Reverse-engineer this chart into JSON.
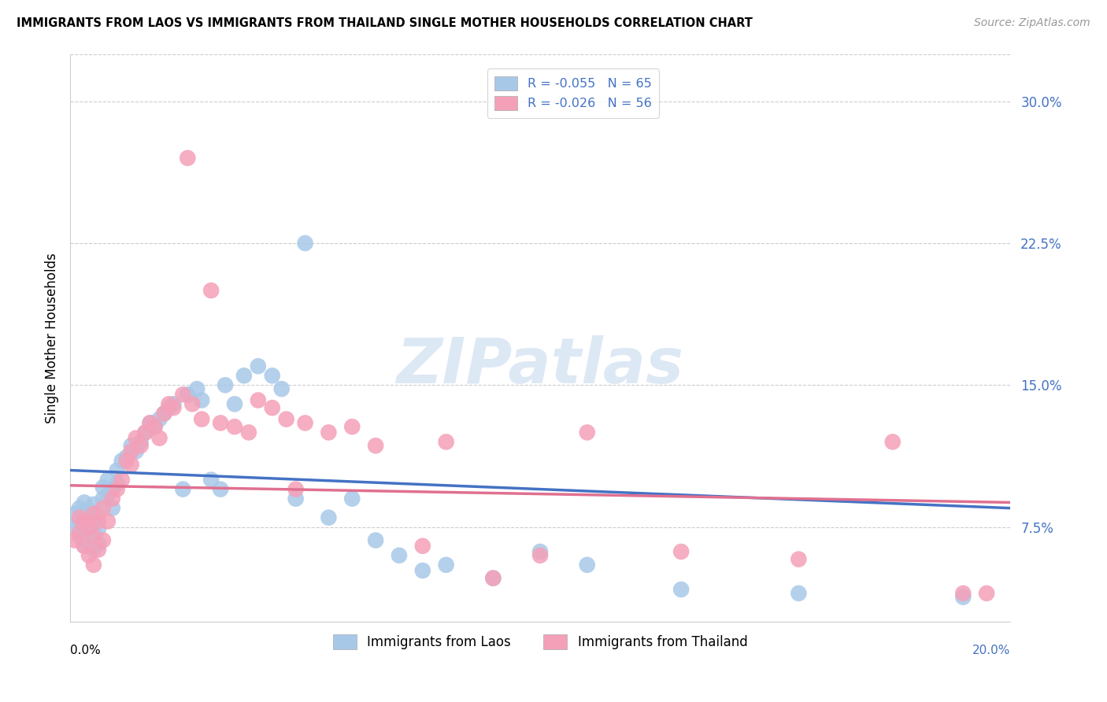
{
  "title": "IMMIGRANTS FROM LAOS VS IMMIGRANTS FROM THAILAND SINGLE MOTHER HOUSEHOLDS CORRELATION CHART",
  "source": "Source: ZipAtlas.com",
  "ylabel": "Single Mother Households",
  "yticks": [
    0.075,
    0.15,
    0.225,
    0.3
  ],
  "ytick_labels": [
    "7.5%",
    "15.0%",
    "22.5%",
    "30.0%"
  ],
  "xmin": 0.0,
  "xmax": 0.2,
  "ymin": 0.025,
  "ymax": 0.325,
  "legend_blue_label": "R = -0.055   N = 65",
  "legend_pink_label": "R = -0.026   N = 56",
  "legend_bottom_blue": "Immigrants from Laos",
  "legend_bottom_pink": "Immigrants from Thailand",
  "blue_color": "#a8c8e8",
  "pink_color": "#f4a0b8",
  "line_blue": "#4472c4",
  "line_pink": "#e07090",
  "watermark": "ZIPatlas",
  "laos_x": [
    0.001,
    0.001,
    0.002,
    0.002,
    0.002,
    0.003,
    0.003,
    0.003,
    0.003,
    0.004,
    0.004,
    0.004,
    0.005,
    0.005,
    0.005,
    0.005,
    0.006,
    0.006,
    0.006,
    0.007,
    0.007,
    0.008,
    0.008,
    0.009,
    0.009,
    0.01,
    0.01,
    0.011,
    0.012,
    0.013,
    0.014,
    0.015,
    0.016,
    0.017,
    0.018,
    0.019,
    0.02,
    0.021,
    0.022,
    0.024,
    0.025,
    0.027,
    0.028,
    0.03,
    0.032,
    0.033,
    0.035,
    0.037,
    0.04,
    0.043,
    0.045,
    0.048,
    0.05,
    0.055,
    0.06,
    0.065,
    0.07,
    0.075,
    0.08,
    0.09,
    0.1,
    0.11,
    0.13,
    0.155,
    0.19
  ],
  "laos_y": [
    0.075,
    0.082,
    0.07,
    0.078,
    0.085,
    0.065,
    0.072,
    0.08,
    0.088,
    0.068,
    0.076,
    0.084,
    0.063,
    0.071,
    0.079,
    0.087,
    0.066,
    0.074,
    0.082,
    0.09,
    0.096,
    0.092,
    0.1,
    0.085,
    0.095,
    0.098,
    0.105,
    0.11,
    0.112,
    0.118,
    0.115,
    0.12,
    0.125,
    0.13,
    0.128,
    0.132,
    0.135,
    0.138,
    0.14,
    0.095,
    0.145,
    0.148,
    0.142,
    0.1,
    0.095,
    0.15,
    0.14,
    0.155,
    0.16,
    0.155,
    0.148,
    0.09,
    0.225,
    0.08,
    0.09,
    0.068,
    0.06,
    0.052,
    0.055,
    0.048,
    0.062,
    0.055,
    0.042,
    0.04,
    0.038
  ],
  "thailand_x": [
    0.001,
    0.002,
    0.002,
    0.003,
    0.003,
    0.004,
    0.004,
    0.005,
    0.005,
    0.005,
    0.006,
    0.006,
    0.007,
    0.007,
    0.008,
    0.009,
    0.01,
    0.011,
    0.012,
    0.013,
    0.013,
    0.014,
    0.015,
    0.016,
    0.017,
    0.018,
    0.019,
    0.02,
    0.021,
    0.022,
    0.024,
    0.025,
    0.026,
    0.028,
    0.03,
    0.032,
    0.035,
    0.038,
    0.04,
    0.043,
    0.046,
    0.048,
    0.05,
    0.055,
    0.06,
    0.065,
    0.075,
    0.08,
    0.09,
    0.1,
    0.11,
    0.13,
    0.155,
    0.175,
    0.19,
    0.195
  ],
  "thailand_y": [
    0.068,
    0.072,
    0.08,
    0.065,
    0.078,
    0.06,
    0.075,
    0.055,
    0.07,
    0.082,
    0.063,
    0.078,
    0.068,
    0.085,
    0.078,
    0.09,
    0.095,
    0.1,
    0.11,
    0.115,
    0.108,
    0.122,
    0.118,
    0.125,
    0.13,
    0.128,
    0.122,
    0.135,
    0.14,
    0.138,
    0.145,
    0.27,
    0.14,
    0.132,
    0.2,
    0.13,
    0.128,
    0.125,
    0.142,
    0.138,
    0.132,
    0.095,
    0.13,
    0.125,
    0.128,
    0.118,
    0.065,
    0.12,
    0.048,
    0.06,
    0.125,
    0.062,
    0.058,
    0.12,
    0.04,
    0.04
  ]
}
